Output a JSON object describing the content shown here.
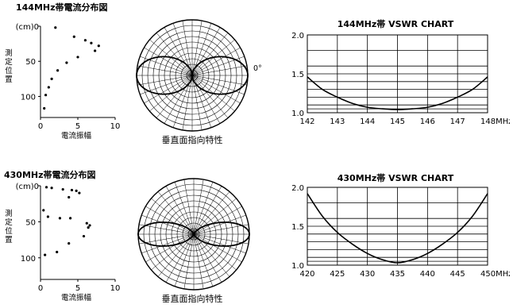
{
  "chart_data": [
    {
      "type": "scatter",
      "title": "144MHz帯電流分布図",
      "ylabel": "測定位置",
      "yunit": "(cm)",
      "xlabel": "電流振幅",
      "xlim": [
        0,
        10
      ],
      "ylim": [
        0,
        130
      ],
      "xticks": [
        "0",
        "5",
        "10"
      ],
      "yticks": [
        "0",
        "50",
        "100"
      ],
      "points": [
        [
          2.0,
          2
        ],
        [
          4.5,
          15
        ],
        [
          6.0,
          20
        ],
        [
          6.8,
          24
        ],
        [
          7.8,
          28
        ],
        [
          7.3,
          35
        ],
        [
          5.0,
          44
        ],
        [
          3.5,
          52
        ],
        [
          2.3,
          63
        ],
        [
          1.5,
          75
        ],
        [
          1.1,
          87
        ],
        [
          0.7,
          98
        ],
        [
          0.5,
          117
        ]
      ]
    },
    {
      "type": "polar",
      "title": "垂直面指向特性",
      "angle_label": "0°",
      "pattern": "figure-eight",
      "max_radius": 1.0
    },
    {
      "type": "line",
      "title": "144MHz帯 VSWR CHART",
      "xunit": "MHz",
      "xlim": [
        142,
        148
      ],
      "xticks": [
        "142",
        "143",
        "144",
        "145",
        "146",
        "147",
        "148"
      ],
      "ylim": [
        1.0,
        2.0
      ],
      "yticks": [
        "1.0",
        "1.5",
        "2.0"
      ],
      "series": [
        {
          "x": [
            142,
            142.5,
            143,
            143.5,
            144,
            144.5,
            145,
            145.5,
            146,
            146.5,
            147,
            147.5,
            148
          ],
          "y": [
            1.46,
            1.3,
            1.2,
            1.12,
            1.07,
            1.05,
            1.04,
            1.05,
            1.07,
            1.12,
            1.2,
            1.3,
            1.46
          ]
        }
      ]
    },
    {
      "type": "scatter",
      "title": "430MHz帯電流分布図",
      "ylabel": "測定位置",
      "yunit": "(cm)",
      "xlabel": "電流振幅",
      "xlim": [
        0,
        10
      ],
      "ylim": [
        0,
        130
      ],
      "xticks": [
        "0",
        "5",
        "10"
      ],
      "yticks": [
        "0",
        "50",
        "100"
      ],
      "points": [
        [
          0.8,
          2
        ],
        [
          1.5,
          3
        ],
        [
          3.0,
          5
        ],
        [
          4.2,
          6
        ],
        [
          4.8,
          7
        ],
        [
          5.2,
          10
        ],
        [
          3.8,
          16
        ],
        [
          0.4,
          34
        ],
        [
          1.0,
          43
        ],
        [
          2.6,
          45
        ],
        [
          4.0,
          45
        ],
        [
          6.2,
          52
        ],
        [
          6.6,
          55
        ],
        [
          6.4,
          58
        ],
        [
          5.8,
          70
        ],
        [
          3.8,
          80
        ],
        [
          2.2,
          92
        ],
        [
          0.6,
          96
        ]
      ]
    },
    {
      "type": "polar",
      "title": "垂直面指向特性",
      "pattern": "figure-eight-sharp",
      "max_radius": 1.0
    },
    {
      "type": "line",
      "title": "430MHz帯 VSWR CHART",
      "xunit": "MHz",
      "xlim": [
        420,
        450
      ],
      "xticks": [
        "420",
        "425",
        "430",
        "435",
        "440",
        "445",
        "450"
      ],
      "ylim": [
        1.0,
        2.0
      ],
      "yticks": [
        "1.0",
        "1.5",
        "2.0"
      ],
      "series": [
        {
          "x": [
            420,
            422.5,
            425,
            427.5,
            430,
            432.5,
            435,
            437.5,
            440,
            442.5,
            445,
            447.5,
            450
          ],
          "y": [
            1.92,
            1.63,
            1.42,
            1.27,
            1.15,
            1.07,
            1.03,
            1.07,
            1.15,
            1.27,
            1.42,
            1.63,
            1.92
          ]
        }
      ]
    }
  ]
}
